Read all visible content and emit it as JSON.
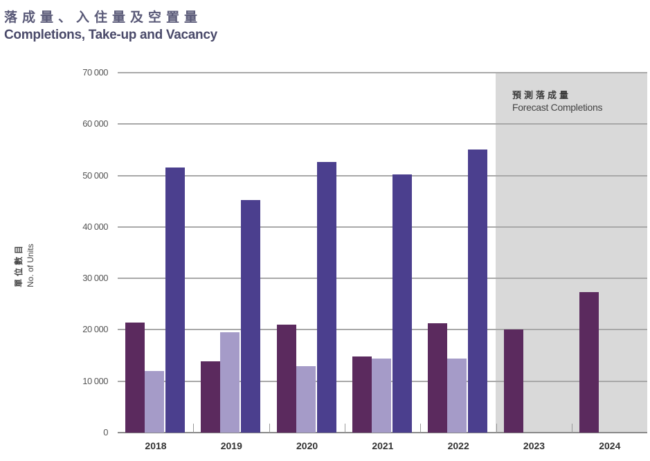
{
  "title": {
    "zh": "落成量、入住量及空置量",
    "en": "Completions, Take-up and Vacancy"
  },
  "y_axis": {
    "label_zh": "單位數目",
    "label_en": "No. of Units",
    "ticks": [
      "70 000",
      "60 000",
      "50 000",
      "40 000",
      "30 000",
      "20 000",
      "10 000",
      "0"
    ]
  },
  "forecast_panel": {
    "label_zh": "預測落成量",
    "label_en": "Forecast Completions",
    "color": "#d9d9d9"
  },
  "colors": {
    "completions": "#5b2a5e",
    "take_up": "#a59bc8",
    "vacancy": "#4b3f8e"
  },
  "chart_data": {
    "type": "bar",
    "title": "Completions, Take-up and Vacancy",
    "title_zh": "落成量、入住量及空置量",
    "xlabel": "",
    "ylabel": "No. of Units",
    "ylim": [
      0,
      70000
    ],
    "grid": true,
    "legend": "none visible",
    "categories": [
      "2018",
      "2019",
      "2020",
      "2021",
      "2022",
      "2023",
      "2024"
    ],
    "series": [
      {
        "name": "Completions",
        "values": [
          21400,
          13900,
          21000,
          14800,
          21300,
          20000,
          27300
        ]
      },
      {
        "name": "Take-up",
        "values": [
          12000,
          19500,
          12900,
          14400,
          14400,
          null,
          null
        ]
      },
      {
        "name": "Vacancy",
        "values": [
          51500,
          45200,
          52600,
          50200,
          55000,
          null,
          null
        ]
      }
    ],
    "annotations": [
      {
        "text": "預測落成量 Forecast Completions",
        "applies_to": [
          "2023",
          "2024"
        ]
      }
    ]
  }
}
